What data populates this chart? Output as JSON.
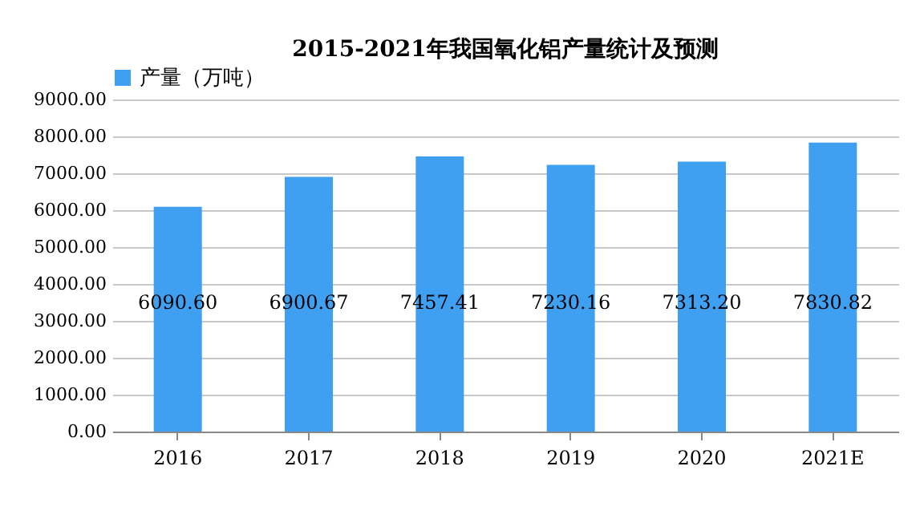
{
  "chart_data": {
    "type": "bar",
    "title": "2015-2021年我国氧化铝产量统计及预测",
    "categories": [
      "2016",
      "2017",
      "2018",
      "2019",
      "2020",
      "2021E"
    ],
    "series": [
      {
        "name": "产量（万吨）",
        "color": "#3f9ff0",
        "values": [
          6090.6,
          6900.67,
          7457.41,
          7230.16,
          7313.2,
          7830.82
        ],
        "value_labels": [
          "6090.60",
          "6900.67",
          "7457.41",
          "7230.16",
          "7313.20",
          "7830.82"
        ]
      }
    ],
    "ylim": [
      0,
      9000
    ],
    "yticks": [
      {
        "value": 0,
        "label": "0.00"
      },
      {
        "value": 1000,
        "label": "1000.00"
      },
      {
        "value": 2000,
        "label": "2000.00"
      },
      {
        "value": 3000,
        "label": "3000.00"
      },
      {
        "value": 4000,
        "label": "4000.00"
      },
      {
        "value": 5000,
        "label": "5000.00"
      },
      {
        "value": 6000,
        "label": "6000.00"
      },
      {
        "value": 7000,
        "label": "7000.00"
      },
      {
        "value": 8000,
        "label": "8000.00"
      },
      {
        "value": 9000,
        "label": "9000.00"
      }
    ],
    "grid": "y",
    "legend": "top"
  }
}
